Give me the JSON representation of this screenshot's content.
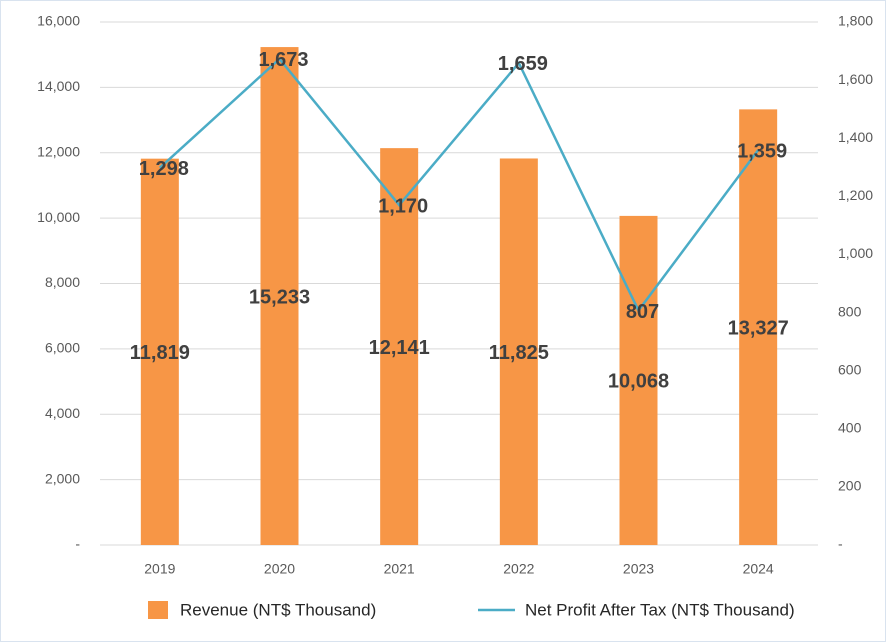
{
  "chart_data": {
    "type": "bar_line",
    "categories": [
      "2019",
      "2020",
      "2021",
      "2022",
      "2023",
      "2024"
    ],
    "series": [
      {
        "name": "Revenue (NT$ Thousand)",
        "type": "bar",
        "color": "#f79646",
        "values": [
          11819,
          15233,
          12141,
          11825,
          10068,
          13327
        ],
        "value_labels": [
          "11,819",
          "15,233",
          "12,141",
          "11,825",
          "10,068",
          "13,327"
        ]
      },
      {
        "name": "Net Profit After Tax (NT$ Thousand)",
        "type": "line",
        "axis": "y2",
        "color": "#4bacc6",
        "values": [
          1298,
          1673,
          1170,
          1659,
          807,
          1359
        ],
        "value_labels": [
          "1,298",
          "1,673",
          "1,170",
          "1,659",
          "807",
          "1,359"
        ]
      }
    ],
    "ylim": [
      0,
      16000
    ],
    "yticks": [
      {
        "value": 0,
        "label": "-"
      },
      {
        "value": 2000,
        "label": "2,000"
      },
      {
        "value": 4000,
        "label": "4,000"
      },
      {
        "value": 6000,
        "label": "6,000"
      },
      {
        "value": 8000,
        "label": "8,000"
      },
      {
        "value": 10000,
        "label": "10,000"
      },
      {
        "value": 12000,
        "label": "12,000"
      },
      {
        "value": 14000,
        "label": "14,000"
      },
      {
        "value": 16000,
        "label": "16,000"
      }
    ],
    "y2lim": [
      0,
      1800
    ],
    "y2ticks": [
      {
        "value": 0,
        "label": "-"
      },
      200,
      400,
      600,
      800,
      {
        "value": 1000,
        "label": "1,000"
      },
      {
        "value": 1200,
        "label": "1,200"
      },
      {
        "value": 1400,
        "label": "1,400"
      },
      {
        "value": 1600,
        "label": "1,600"
      },
      {
        "value": 1800,
        "label": "1,800"
      }
    ],
    "grid": true,
    "legend": "bottom"
  }
}
